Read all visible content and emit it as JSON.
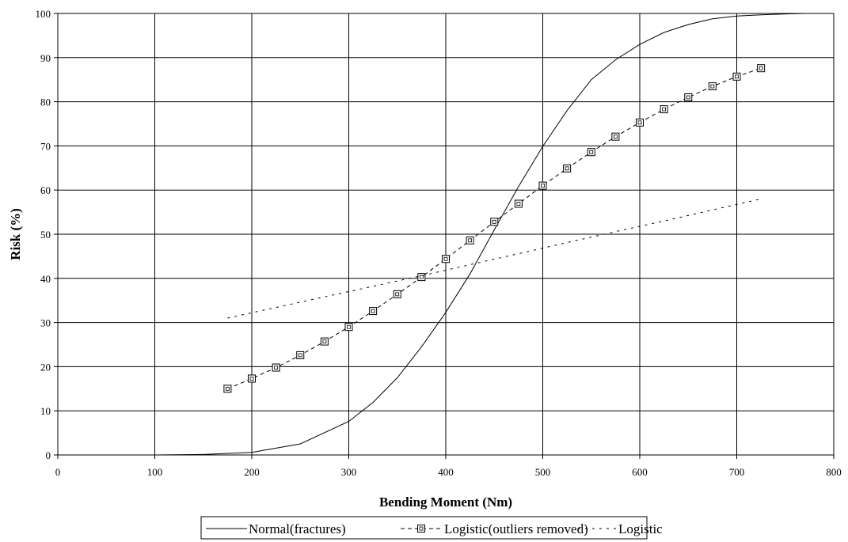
{
  "chart_data": {
    "type": "line",
    "title": "",
    "xlabel": "Bending Moment (Nm)",
    "ylabel": "Risk (%)",
    "xlim": [
      0,
      800
    ],
    "ylim": [
      0,
      100
    ],
    "xticks": [
      0,
      100,
      200,
      300,
      400,
      500,
      600,
      700,
      800
    ],
    "yticks": [
      0,
      10,
      20,
      30,
      40,
      50,
      60,
      70,
      80,
      90,
      100
    ],
    "grid": true,
    "legend_position": "bottom",
    "series": [
      {
        "name": "Normal(fractures)",
        "style": "solid",
        "marker": "none",
        "color": "#000000",
        "x": [
          100,
          150,
          200,
          250,
          300,
          325,
          350,
          375,
          400,
          425,
          450,
          475,
          500,
          525,
          550,
          575,
          600,
          625,
          650,
          675,
          700,
          725,
          750,
          770
        ],
        "y": [
          0.0,
          0.1,
          0.6,
          2.5,
          7.6,
          11.9,
          17.5,
          24.5,
          32.3,
          41.0,
          51.0,
          60.8,
          69.9,
          78.0,
          85.0,
          89.5,
          93.0,
          95.7,
          97.5,
          98.8,
          99.4,
          99.7,
          99.9,
          100.0
        ]
      },
      {
        "name": "Logistic(outliers removed)",
        "style": "dashed",
        "marker": "square",
        "color": "#000000",
        "x": [
          175,
          200,
          225,
          250,
          275,
          300,
          325,
          350,
          375,
          400,
          425,
          450,
          475,
          500,
          525,
          550,
          575,
          600,
          625,
          650,
          675,
          700,
          725
        ],
        "y": [
          15.0,
          17.3,
          19.8,
          22.6,
          25.7,
          29.0,
          32.6,
          36.4,
          40.3,
          44.4,
          48.6,
          52.8,
          56.9,
          61.0,
          64.9,
          68.6,
          72.1,
          75.3,
          78.3,
          81.0,
          83.5,
          85.7,
          87.6
        ]
      },
      {
        "name": "Logistic",
        "style": "dotted",
        "marker": "none",
        "color": "#000000",
        "x": [
          175,
          225,
          275,
          325,
          375,
          425,
          475,
          525,
          575,
          625,
          675,
          725
        ],
        "y": [
          31.0,
          33.4,
          35.8,
          38.2,
          40.6,
          43.1,
          45.6,
          48.1,
          50.6,
          53.0,
          55.5,
          58.0
        ]
      }
    ]
  }
}
